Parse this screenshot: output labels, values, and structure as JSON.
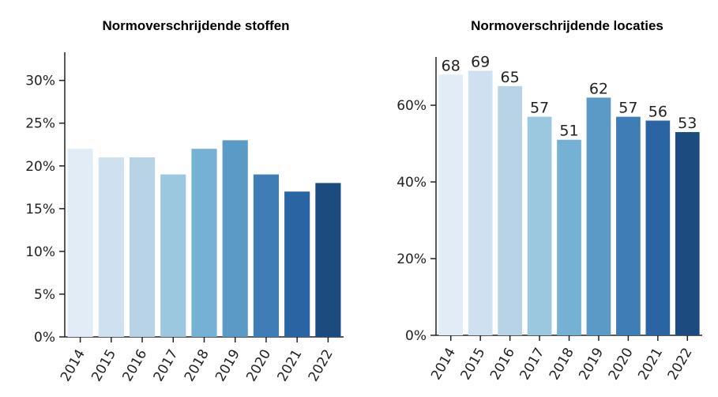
{
  "chart_data": [
    {
      "type": "bar",
      "title": "Normoverschrijdende stoffen",
      "categories": [
        "2014",
        "2015",
        "2016",
        "2017",
        "2018",
        "2019",
        "2020",
        "2021",
        "2022"
      ],
      "values": [
        22,
        21,
        21,
        19,
        22,
        23,
        19,
        17,
        18
      ],
      "colors": [
        "#e1ecf7",
        "#cfe0f1",
        "#b8d3e6",
        "#9bc7df",
        "#74b1d5",
        "#5b9ac6",
        "#3e7db6",
        "#2a64a2",
        "#1c4b80"
      ],
      "ylim": [
        0,
        33.3
      ],
      "yticks": [
        {
          "value": 0,
          "label": "0%"
        },
        {
          "value": 5,
          "label": "5%"
        },
        {
          "value": 10,
          "label": "10%"
        },
        {
          "value": 15,
          "label": "15%"
        },
        {
          "value": 20,
          "label": "20%"
        },
        {
          "value": 25,
          "label": "25%"
        },
        {
          "value": 30,
          "label": "30%"
        }
      ],
      "show_values": false
    },
    {
      "type": "bar",
      "title": "Normoverschrijdende locaties",
      "categories": [
        "2014",
        "2015",
        "2016",
        "2017",
        "2018",
        "2019",
        "2020",
        "2021",
        "2022"
      ],
      "values": [
        68,
        69,
        65,
        57,
        51,
        62,
        57,
        56,
        53
      ],
      "colors": [
        "#e1ecf7",
        "#cfe0f1",
        "#b8d3e6",
        "#9bc7df",
        "#74b1d5",
        "#5b9ac6",
        "#3e7db6",
        "#2a64a2",
        "#1c4b80"
      ],
      "ylim": [
        0,
        72.6
      ],
      "yticks": [
        {
          "value": 0,
          "label": "0%"
        },
        {
          "value": 20,
          "label": "20%"
        },
        {
          "value": 40,
          "label": "40%"
        },
        {
          "value": 60,
          "label": "60%"
        }
      ],
      "show_values": true
    }
  ]
}
